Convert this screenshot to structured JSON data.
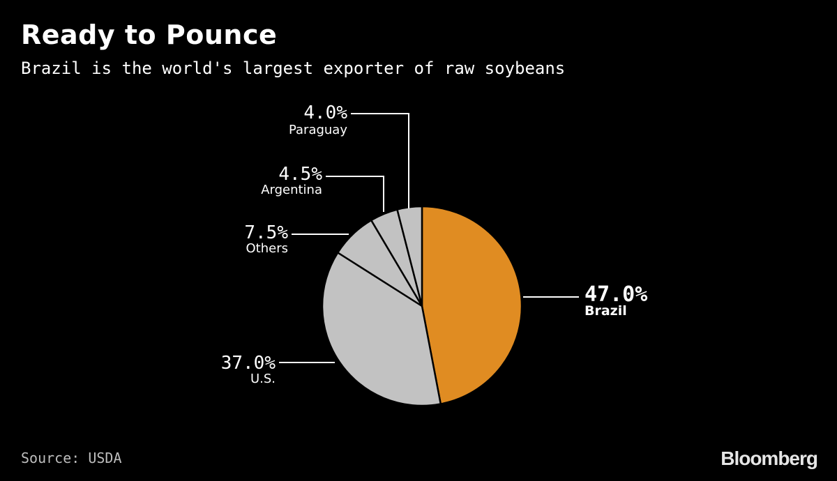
{
  "header": {
    "title": "Ready to Pounce",
    "subtitle": "Brazil is the world's largest exporter of raw soybeans"
  },
  "footer": {
    "source": "Source: USDA",
    "brand": "Bloomberg"
  },
  "chart_data": {
    "type": "pie",
    "title": "Ready to Pounce",
    "subtitle": "Brazil is the world's largest exporter of raw soybeans",
    "start_angle_deg": 0,
    "direction": "clockwise",
    "slices": [
      {
        "label": "Brazil",
        "value": 47.0,
        "value_label": "47.0%",
        "color": "#e08c22",
        "highlight": true
      },
      {
        "label": "U.S.",
        "value": 37.0,
        "value_label": "37.0%",
        "color": "#c2c2c2"
      },
      {
        "label": "Others",
        "value": 7.5,
        "value_label": "7.5%",
        "color": "#c2c2c2"
      },
      {
        "label": "Argentina",
        "value": 4.5,
        "value_label": "4.5%",
        "color": "#c2c2c2"
      },
      {
        "label": "Paraguay",
        "value": 4.0,
        "value_label": "4.0%",
        "color": "#c2c2c2"
      }
    ]
  }
}
